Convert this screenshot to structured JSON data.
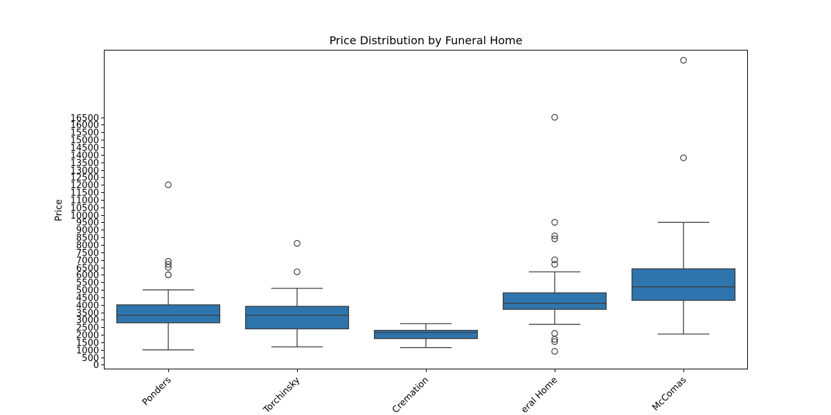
{
  "chart_data": {
    "type": "box",
    "title": "Price Distribution by Funeral Home",
    "xlabel": "",
    "ylabel": "Price",
    "ylim": [
      -300,
      21000
    ],
    "yticks": [
      0,
      500,
      1000,
      1500,
      2000,
      2500,
      3000,
      3500,
      4000,
      4500,
      5000,
      5500,
      6000,
      6500,
      7000,
      7500,
      8000,
      8500,
      9000,
      9500,
      10000,
      10500,
      11000,
      11500,
      12000,
      12500,
      13000,
      13500,
      14000,
      14500,
      15000,
      15500,
      16000,
      16500
    ],
    "grid": false,
    "color": "#2e75ad",
    "categories": [
      "Ponders",
      "Torchinsky",
      "Cremation",
      "eral Home",
      "McComas"
    ],
    "boxes": [
      {
        "category": "Ponders",
        "whisker_low": 1000,
        "q1": 2800,
        "median": 3300,
        "q3": 4000,
        "whisker_high": 5000,
        "outliers": [
          12000,
          6900,
          6700,
          6500,
          6000,
          6000
        ]
      },
      {
        "category": "Torchinsky",
        "whisker_low": 1200,
        "q1": 2400,
        "median": 3300,
        "q3": 3900,
        "whisker_high": 5100,
        "outliers": [
          8100,
          6200
        ]
      },
      {
        "category": "Cremation",
        "whisker_low": 1150,
        "q1": 1750,
        "median": 2150,
        "q3": 2300,
        "whisker_high": 2750,
        "outliers": []
      },
      {
        "category": "eral Home",
        "whisker_low": 2700,
        "q1": 3700,
        "median": 4100,
        "q3": 4800,
        "whisker_high": 6200,
        "outliers": [
          16500,
          9500,
          8600,
          8400,
          7000,
          6700,
          2100,
          1700,
          1550,
          900
        ]
      },
      {
        "category": "McComas",
        "whisker_low": 2050,
        "q1": 4300,
        "median": 5200,
        "q3": 6400,
        "whisker_high": 9500,
        "outliers": [
          20300,
          13800
        ]
      }
    ]
  }
}
